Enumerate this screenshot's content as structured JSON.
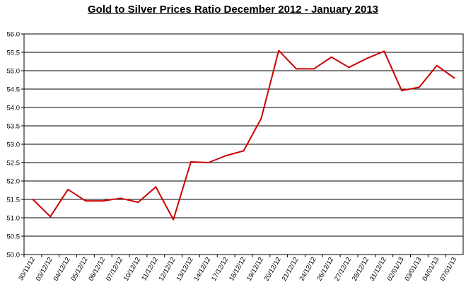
{
  "chart_data": {
    "type": "line",
    "title": "Gold to Silver Prices Ratio December 2012 - January 2013",
    "xlabel": "",
    "ylabel": "",
    "ylim": [
      50.0,
      56.0
    ],
    "yticks": [
      "50.0",
      "50.5",
      "51.0",
      "51.5",
      "52.0",
      "52.5",
      "53.0",
      "53.5",
      "54.0",
      "54.5",
      "55.0",
      "55.5",
      "56.0"
    ],
    "grid": true,
    "legend": "none",
    "line_color": "#cc0000",
    "categories": [
      "30/11/12",
      "03/12/12",
      "04/12/12",
      "05/12/12",
      "06/12/12",
      "07/12/12",
      "10/12/12",
      "11/12/12",
      "12/12/12",
      "13/12/12",
      "14/12/12",
      "17/12/12",
      "18/12/12",
      "19/12/12",
      "20/12/12",
      "21/12/12",
      "24/12/12",
      "26/12/12",
      "27/12/12",
      "28/12/12",
      "31/12/12",
      "02/01/13",
      "03/01/13",
      "04/01/13",
      "07/01/13"
    ],
    "series": [
      {
        "values": [
          51.5,
          51.03,
          51.77,
          51.46,
          51.46,
          51.53,
          51.42,
          51.84,
          50.95,
          52.52,
          52.5,
          52.69,
          52.82,
          53.7,
          55.55,
          55.05,
          55.05,
          55.37,
          55.09,
          55.33,
          55.53,
          54.46,
          54.55,
          55.14,
          54.8
        ]
      }
    ]
  }
}
